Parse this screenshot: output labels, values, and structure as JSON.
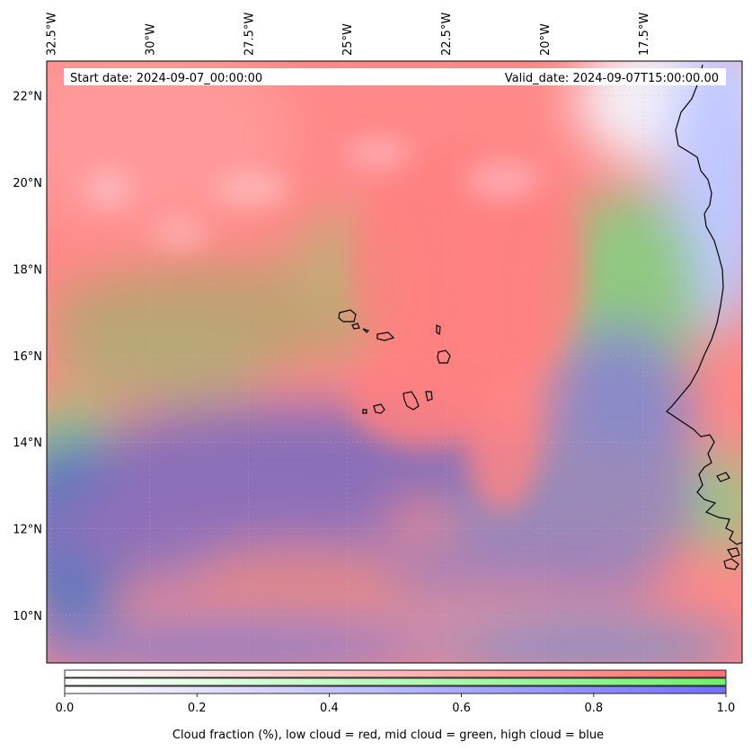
{
  "map": {
    "lon_ticks": [
      "32.5°W",
      "30°W",
      "27.5°W",
      "25°W",
      "22.5°W",
      "20°W",
      "17.5°W"
    ],
    "lat_ticks": [
      "22°N",
      "20°N",
      "18°N",
      "16°N",
      "14°N",
      "12°N",
      "10°N"
    ],
    "lon_values": [
      -32.5,
      -30,
      -27.5,
      -25,
      -22.5,
      -20,
      -17.5
    ],
    "lat_values": [
      22,
      20,
      18,
      16,
      14,
      12,
      10
    ],
    "lon_range": [
      -32.6,
      -15.0
    ],
    "lat_range": [
      8.9,
      22.8
    ],
    "start_date": "Start date: 2024-09-07_00:00:00",
    "valid_date": "Valid_date: 2024-09-07T15:00:00.00"
  },
  "colorbar": {
    "ticks": [
      "0.0",
      "0.2",
      "0.4",
      "0.6",
      "0.8",
      "1.0"
    ],
    "tick_values": [
      0.0,
      0.2,
      0.4,
      0.6,
      0.8,
      1.0
    ],
    "range": [
      0.0,
      1.0
    ],
    "label": "Cloud fraction (%), low cloud = red, mid cloud = green, high cloud = blue",
    "colors": {
      "low": "#ff7070",
      "mid": "#70f070",
      "high": "#7070ff"
    }
  }
}
